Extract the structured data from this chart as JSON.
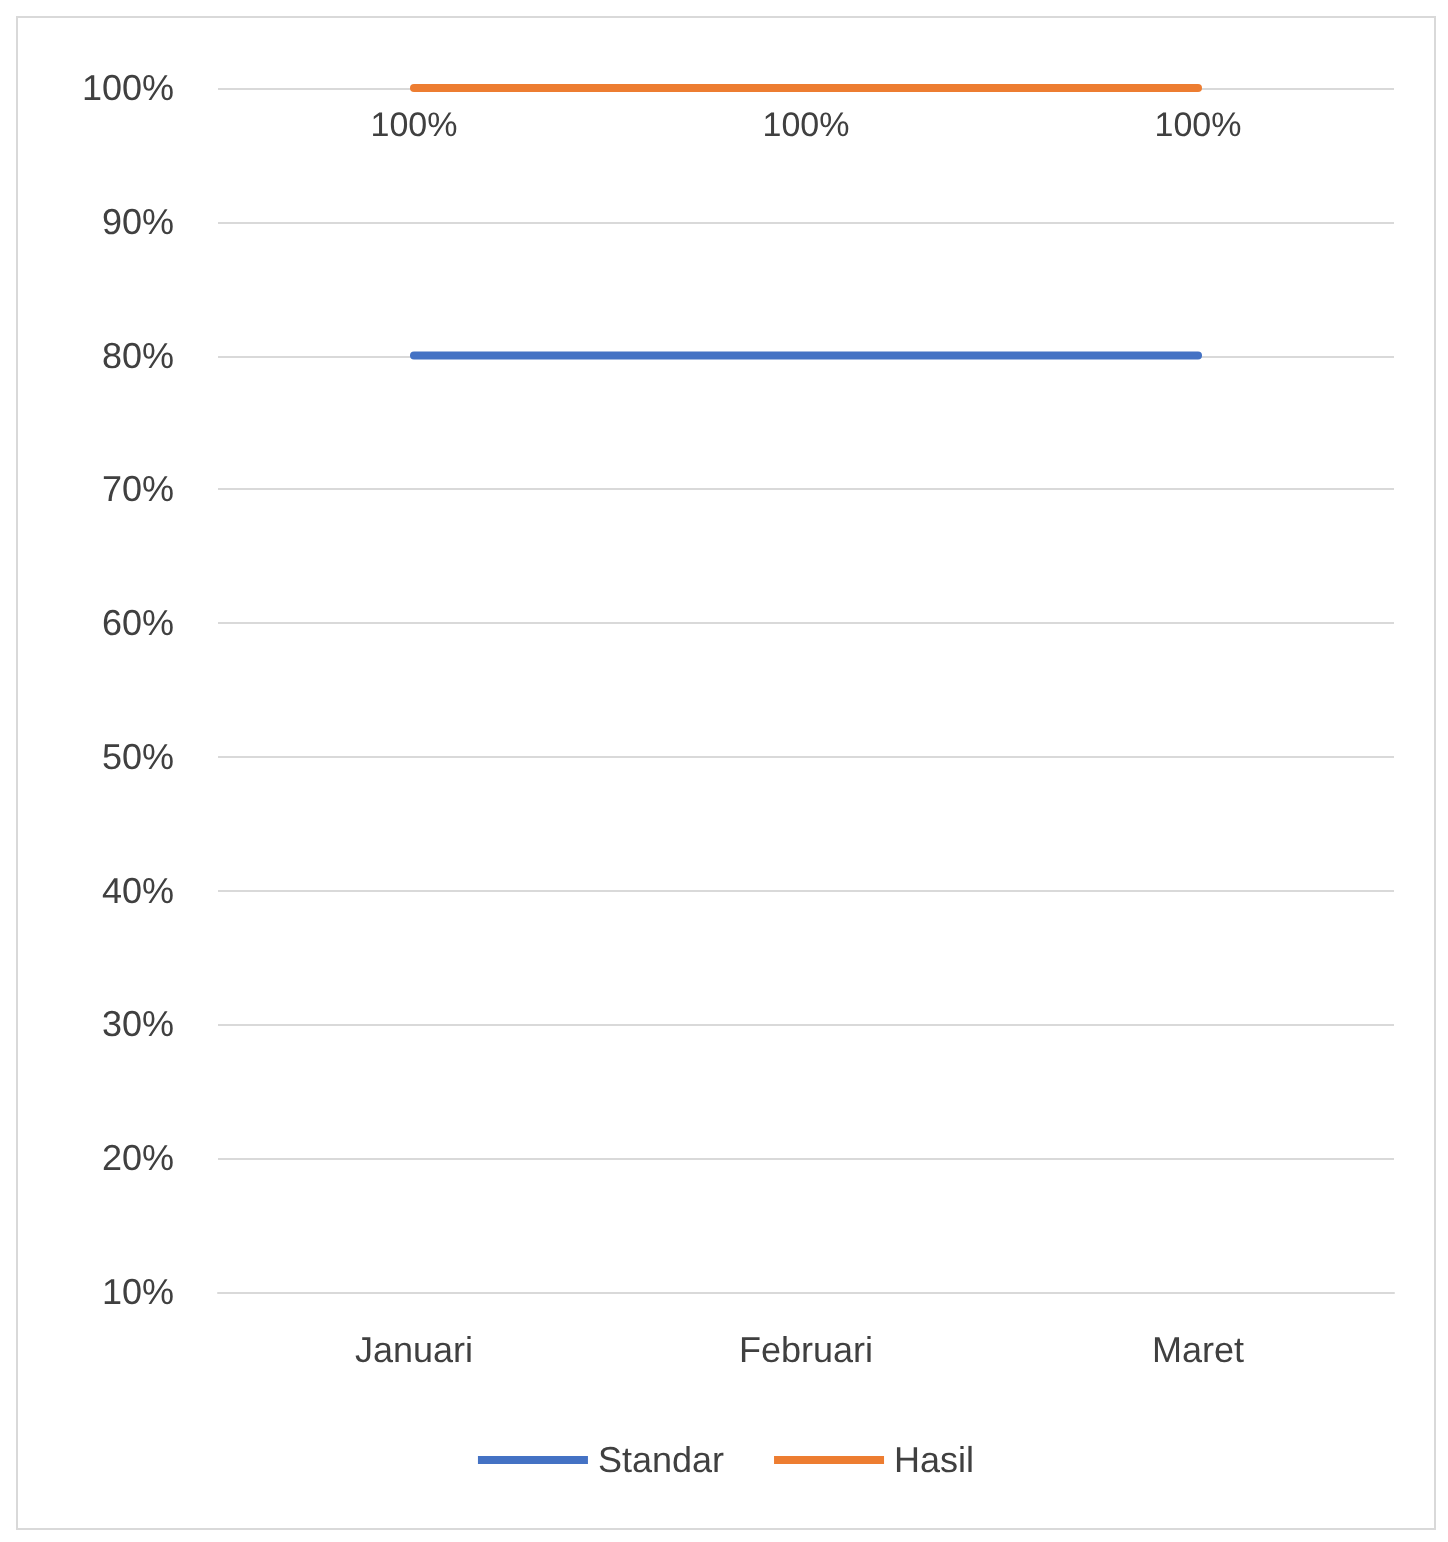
{
  "chart_data": {
    "type": "line",
    "categories": [
      "Januari",
      "Februari",
      "Maret"
    ],
    "series": [
      {
        "name": "Standar",
        "color": "#4472c4",
        "values": [
          80,
          80,
          80
        ]
      },
      {
        "name": "Hasil",
        "color": "#ed7d31",
        "values": [
          100,
          100,
          100
        ],
        "value_labels": [
          "100%",
          "100%",
          "100%"
        ]
      }
    ],
    "ylim": [
      10,
      100
    ],
    "yticks": [
      {
        "value": 10,
        "label": "10%"
      },
      {
        "value": 20,
        "label": "20%"
      },
      {
        "value": 30,
        "label": "30%"
      },
      {
        "value": 40,
        "label": "40%"
      },
      {
        "value": 50,
        "label": "50%"
      },
      {
        "value": 60,
        "label": "60%"
      },
      {
        "value": 70,
        "label": "70%"
      },
      {
        "value": 80,
        "label": "80%"
      },
      {
        "value": 90,
        "label": "90%"
      },
      {
        "value": 100,
        "label": "100%"
      }
    ],
    "grid": "y",
    "legend": "bottom",
    "marker": "none",
    "line_style": "solid"
  }
}
